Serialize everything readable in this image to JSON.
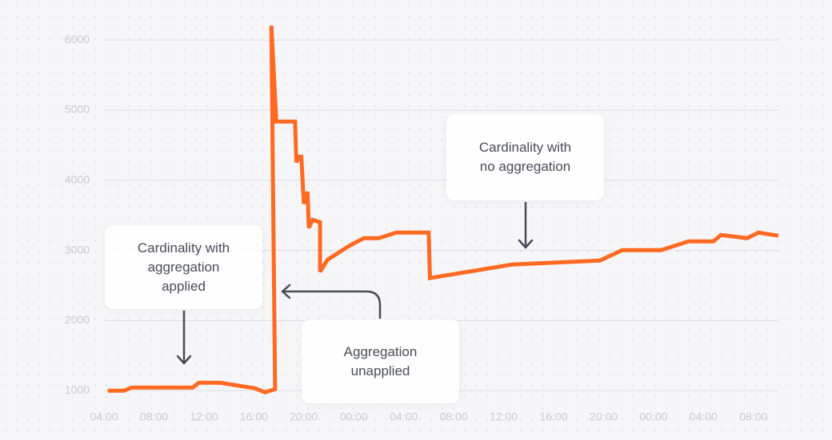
{
  "chart_data": {
    "type": "line",
    "x": [
      0.3,
      1.6,
      2.2,
      7.1,
      7.6,
      9.3,
      12.1,
      12.9,
      13.7,
      13.4,
      13.8,
      15.3,
      15.4,
      15.6,
      15.8,
      16.0,
      16.3,
      16.4,
      16.7,
      17.3,
      17.3,
      17.9,
      19.6,
      20.8,
      22.0,
      23.4,
      26.0,
      26.1,
      32.7,
      39.7,
      41.5,
      44.6,
      46.8,
      48.8,
      49.4,
      51.5,
      52.4,
      54.0
    ],
    "series": [
      {
        "color": "#ff6a23",
        "values": [
          1000,
          1000,
          1045,
          1045,
          1114,
          1114,
          1034,
          977,
          1023,
          6205,
          4838,
          4838,
          4257,
          4337,
          4337,
          3665,
          3836,
          3323,
          3437,
          3403,
          2697,
          2868,
          3062,
          3175,
          3175,
          3255,
          3255,
          2606,
          2800,
          2856,
          3005,
          3005,
          3130,
          3130,
          3221,
          3175,
          3255,
          3210
        ]
      }
    ],
    "xlim": [
      0,
      54
    ],
    "xticks": [
      {
        "value": 0,
        "label": "04:00"
      },
      {
        "value": 4,
        "label": "08:00"
      },
      {
        "value": 8,
        "label": "12:00"
      },
      {
        "value": 12,
        "label": "16:00"
      },
      {
        "value": 16,
        "label": "20:00"
      },
      {
        "value": 20,
        "label": "00:00"
      },
      {
        "value": 24,
        "label": "04:00"
      },
      {
        "value": 28,
        "label": "08:00"
      },
      {
        "value": 32,
        "label": "12:00"
      },
      {
        "value": 36,
        "label": "16:00"
      },
      {
        "value": 40,
        "label": "20:00"
      },
      {
        "value": 44,
        "label": "00:00"
      },
      {
        "value": 48,
        "label": "04:00"
      },
      {
        "value": 52,
        "label": "08:00"
      }
    ],
    "ylim": [
      650,
      6230
    ],
    "yticks": [
      1000,
      2000,
      3000,
      4000,
      5000,
      6000
    ],
    "grid": true,
    "annotations": [
      "Cardinality with aggregation applied",
      "Cardinality with no aggregation",
      "Aggregation unapplied"
    ]
  }
}
